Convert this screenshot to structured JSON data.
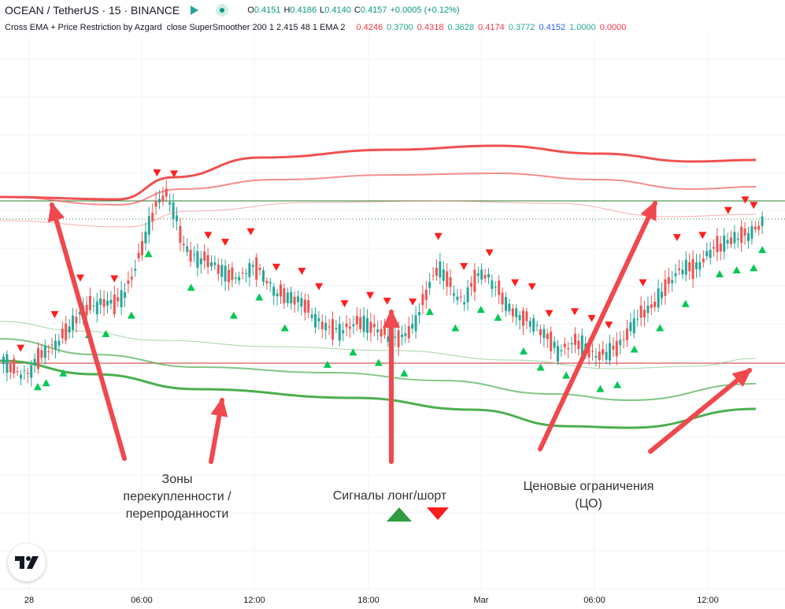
{
  "header": {
    "symbol": "OCEAN / TetherUS · 15 · BINANCE",
    "ohlc": [
      {
        "k": "O",
        "v": "0.4151"
      },
      {
        "k": "H",
        "v": "0.4186"
      },
      {
        "k": "L",
        "v": "0.4140"
      },
      {
        "k": "C",
        "v": "0.4157"
      },
      {
        "k": "",
        "v": "+0.0005 (+0.12%)"
      }
    ],
    "indicator_name": "Cross EMA + Price Restriction by Azgard",
    "indicator_args": "close SuperSmoother 200 1 2.415 48 1 EMA 2",
    "indicator_values": [
      {
        "v": "0.4246",
        "color": "#f23645"
      },
      {
        "v": "0.3700",
        "color": "#22ab94"
      },
      {
        "v": "0.4318",
        "color": "#f23645"
      },
      {
        "v": "0.3628",
        "color": "#22ab94"
      },
      {
        "v": "0.4174",
        "color": "#f23645"
      },
      {
        "v": "0.3772",
        "color": "#22ab94"
      },
      {
        "v": "0.4152",
        "color": "#2962ff"
      },
      {
        "v": "1.0000",
        "color": "#22ab94"
      },
      {
        "v": "0.0000",
        "color": "#f23645"
      }
    ]
  },
  "annotations": {
    "zones": "Зоны\nперекупленности /\nперепроданности",
    "signals": "Сигналы лонг/шорт",
    "limits": "Ценовые ограничения\n(ЦО)"
  },
  "colors": {
    "up": "#26a69a",
    "down": "#ef5350",
    "signal_long": "#00c853",
    "signal_short": "#ff1e1e",
    "upper_band": "#f05050",
    "lower_band": "#4caf50",
    "arrow": "#f0484d"
  },
  "icons": {
    "logo": "tradingview-logo-icon",
    "long": "triangle-up-icon",
    "short": "triangle-down-icon"
  },
  "chart_data": {
    "type": "candlestick",
    "x_labels": [
      "28",
      "06:00",
      "12:00",
      "18:00",
      "Mar",
      "06:00",
      "12:00"
    ],
    "series": [
      {
        "name": "close_path",
        "values": [
          0.392,
          0.3905,
          0.3895,
          0.3898,
          0.392,
          0.3935,
          0.3945,
          0.396,
          0.398,
          0.4,
          0.401,
          0.4015,
          0.402,
          0.4015,
          0.403,
          0.406,
          0.41,
          0.415,
          0.419,
          0.4205,
          0.418,
          0.412,
          0.41,
          0.4095,
          0.409,
          0.408,
          0.407,
          0.406,
          0.4065,
          0.408,
          0.4075,
          0.4055,
          0.4035,
          0.403,
          0.4025,
          0.402,
          0.4,
          0.3985,
          0.3975,
          0.397,
          0.3972,
          0.398,
          0.3985,
          0.3978,
          0.397,
          0.396,
          0.3955,
          0.396,
          0.3975,
          0.401,
          0.405,
          0.408,
          0.406,
          0.403,
          0.402,
          0.405,
          0.407,
          0.406,
          0.404,
          0.4015,
          0.4,
          0.399,
          0.3985,
          0.397,
          0.3955,
          0.3935,
          0.394,
          0.395,
          0.3945,
          0.393,
          0.3925,
          0.3935,
          0.394,
          0.396,
          0.3985,
          0.4,
          0.401,
          0.403,
          0.405,
          0.407,
          0.408,
          0.4075,
          0.409,
          0.411,
          0.4115,
          0.4125,
          0.413,
          0.4135,
          0.4142,
          0.4157
        ]
      }
    ],
    "signals_long_x": [
      4,
      5,
      7,
      10,
      12,
      15,
      17,
      22,
      27,
      30,
      33,
      38,
      41,
      44,
      47,
      50,
      53,
      56,
      58,
      61,
      63,
      66,
      70,
      72,
      74,
      77,
      80,
      84,
      86,
      88,
      89
    ],
    "signals_short_x": [
      2,
      6,
      9,
      13,
      18,
      20,
      24,
      26,
      29,
      32,
      35,
      37,
      40,
      43,
      45,
      48,
      51,
      54,
      57,
      60,
      62,
      64,
      67,
      69,
      71,
      75,
      79,
      82,
      85,
      87,
      88
    ],
    "ylim": [
      0.352,
      0.448
    ]
  }
}
